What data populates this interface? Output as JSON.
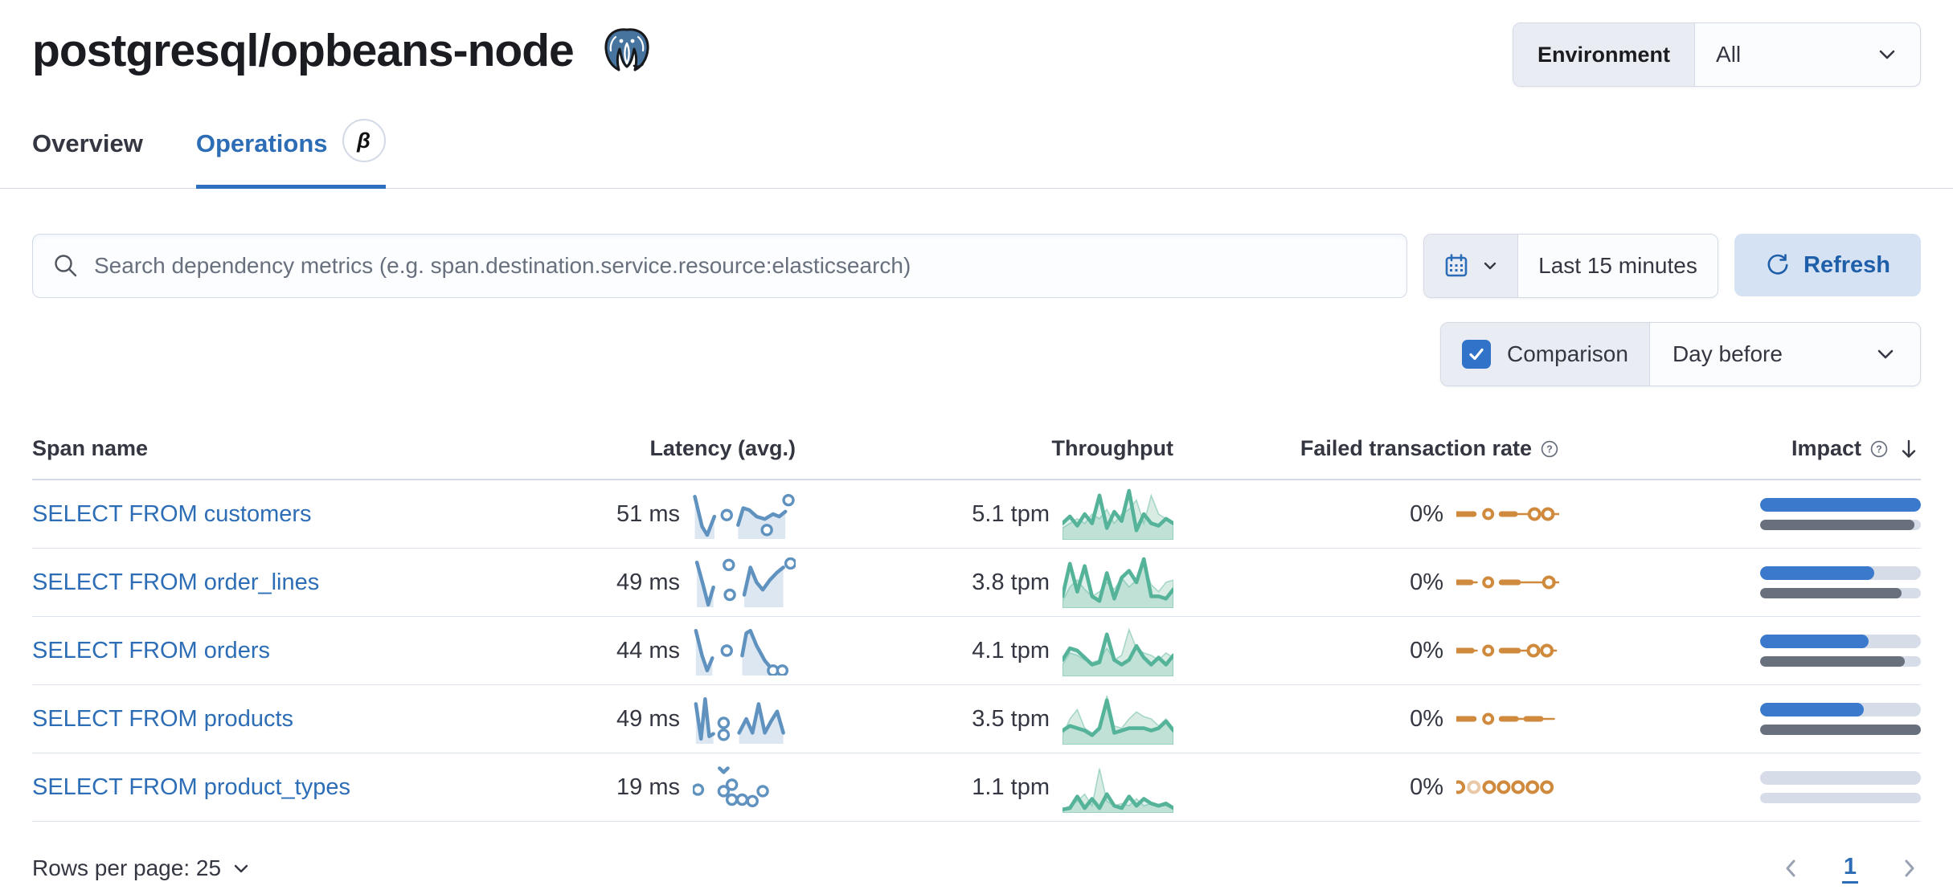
{
  "header": {
    "title": "postgresql/opbeans-node",
    "environment_label": "Environment",
    "environment_value": "All"
  },
  "tabs": [
    {
      "label": "Overview",
      "active": false
    },
    {
      "label": "Operations",
      "active": true,
      "beta": "β"
    }
  ],
  "toolbar": {
    "search_placeholder": "Search dependency metrics (e.g. span.destination.service.resource:elasticsearch)",
    "time_range": "Last 15 minutes",
    "refresh_label": "Refresh",
    "comparison_label": "Comparison",
    "comparison_checked": true,
    "comparison_value": "Day before"
  },
  "colors": {
    "accent_blue": "#2c6db6",
    "latency_spark": "#6092c0",
    "latency_fill": "#dde7f2",
    "throughput_spark": "#54b399",
    "throughput_prev_fill": "#d8ece3",
    "failed_spark": "#d08a3e",
    "impact_current": "#3b79cd",
    "impact_previous": "#69707d",
    "impact_track": "#d6dde8"
  },
  "table": {
    "columns": [
      "Span name",
      "Latency (avg.)",
      "Throughput",
      "Failed transaction rate",
      "Impact"
    ],
    "rows": [
      {
        "span_name": "SELECT FROM customers",
        "latency": "51 ms",
        "throughput": "5.1 tpm",
        "failed_rate": "0%",
        "impact_current": 1.0,
        "impact_previous": 0.96,
        "latency_spark": {
          "segs": [
            {
              "pts": [
                [
                  0.02,
                  0.15
                ],
                [
                  0.09,
                  0.75
                ],
                [
                  0.14,
                  0.92
                ],
                [
                  0.21,
                  0.55
                ]
              ],
              "area": true
            },
            {
              "pts": [
                [
                  0.44,
                  0.72
                ],
                [
                  0.49,
                  0.38
                ],
                [
                  0.55,
                  0.42
                ],
                [
                  0.62,
                  0.55
                ],
                [
                  0.7,
                  0.6
                ],
                [
                  0.78,
                  0.5
                ],
                [
                  0.84,
                  0.55
                ],
                [
                  0.9,
                  0.45
                ]
              ],
              "area": true
            }
          ],
          "dots": [
            [
              0.33,
              0.52
            ],
            [
              0.72,
              0.82
            ],
            [
              0.93,
              0.22
            ]
          ]
        },
        "throughput_curr": [
          0.3,
          0.45,
          0.25,
          0.5,
          0.3,
          0.9,
          0.2,
          0.55,
          0.35,
          1.0,
          0.15,
          0.5,
          0.3,
          0.25,
          0.4,
          0.3
        ],
        "throughput_prev": [
          0.2,
          0.3,
          0.4,
          0.3,
          0.5,
          0.4,
          0.6,
          0.3,
          0.5,
          0.6,
          0.8,
          0.3,
          0.9,
          0.5,
          0.4,
          0.3
        ],
        "failed_spark": [
          {
            "t": "dash",
            "x1": 0.0,
            "x2": 0.17
          },
          {
            "t": "dot",
            "x": 0.31
          },
          {
            "t": "dash",
            "x1": 0.44,
            "x2": 0.57
          },
          {
            "t": "line",
            "x1": 0.57,
            "x2": 0.71
          },
          {
            "t": "odot",
            "x": 0.76
          },
          {
            "t": "odot",
            "x": 0.89
          },
          {
            "t": "line",
            "x1": 0.93,
            "x2": 1.0
          }
        ]
      },
      {
        "span_name": "SELECT FROM order_lines",
        "latency": "49 ms",
        "throughput": "3.8 tpm",
        "failed_rate": "0%",
        "impact_current": 0.71,
        "impact_previous": 0.88,
        "latency_spark": {
          "segs": [
            {
              "pts": [
                [
                  0.04,
                  0.1
                ],
                [
                  0.1,
                  0.55
                ],
                [
                  0.15,
                  0.95
                ],
                [
                  0.2,
                  0.6
                ]
              ],
              "area": true
            },
            {
              "pts": [
                [
                  0.5,
                  0.75
                ],
                [
                  0.56,
                  0.2
                ],
                [
                  0.62,
                  0.5
                ],
                [
                  0.68,
                  0.65
                ],
                [
                  0.75,
                  0.45
                ],
                [
                  0.82,
                  0.3
                ],
                [
                  0.88,
                  0.2
                ]
              ],
              "area": true
            }
          ],
          "dots": [
            [
              0.35,
              0.15
            ],
            [
              0.36,
              0.75
            ],
            [
              0.95,
              0.12
            ]
          ]
        },
        "throughput_curr": [
          0.2,
          0.9,
          0.3,
          0.85,
          0.2,
          0.1,
          0.7,
          0.15,
          0.6,
          0.75,
          0.5,
          1.0,
          0.2,
          0.2,
          0.15,
          0.35
        ],
        "throughput_prev": [
          0.1,
          0.4,
          0.55,
          0.35,
          0.2,
          0.3,
          0.5,
          0.35,
          0.6,
          0.4,
          0.55,
          0.9,
          0.45,
          0.3,
          0.5,
          0.55
        ],
        "failed_spark": [
          {
            "t": "dash",
            "x1": 0.0,
            "x2": 0.14
          },
          {
            "t": "line",
            "x1": 0.14,
            "x2": 0.2
          },
          {
            "t": "dot",
            "x": 0.31
          },
          {
            "t": "dash",
            "x1": 0.44,
            "x2": 0.6
          },
          {
            "t": "line",
            "x1": 0.6,
            "x2": 0.86
          },
          {
            "t": "odot",
            "x": 0.9
          },
          {
            "t": "line",
            "x1": 0.94,
            "x2": 1.0
          }
        ]
      },
      {
        "span_name": "SELECT FROM orders",
        "latency": "44 ms",
        "throughput": "4.1 tpm",
        "failed_rate": "0%",
        "impact_current": 0.675,
        "impact_previous": 0.9,
        "latency_spark": {
          "segs": [
            {
              "pts": [
                [
                  0.03,
                  0.1
                ],
                [
                  0.09,
                  0.6
                ],
                [
                  0.14,
                  0.9
                ],
                [
                  0.19,
                  0.65
                ]
              ],
              "area": true
            },
            {
              "pts": [
                [
                  0.48,
                  0.6
                ],
                [
                  0.52,
                  0.15
                ],
                [
                  0.56,
                  0.1
                ],
                [
                  0.62,
                  0.4
                ],
                [
                  0.7,
                  0.7
                ],
                [
                  0.78,
                  0.9
                ],
                [
                  0.9,
                  0.95
                ]
              ],
              "area": true
            }
          ],
          "dots": [
            [
              0.33,
              0.5
            ],
            [
              0.78,
              0.9
            ],
            [
              0.87,
              0.9
            ]
          ]
        },
        "throughput_curr": [
          0.3,
          0.55,
          0.5,
          0.35,
          0.2,
          0.25,
          0.85,
          0.3,
          0.2,
          0.3,
          0.6,
          0.35,
          0.2,
          0.35,
          0.2,
          0.4
        ],
        "throughput_prev": [
          0.2,
          0.45,
          0.4,
          0.3,
          0.25,
          0.3,
          0.55,
          0.3,
          0.4,
          0.95,
          0.55,
          0.45,
          0.4,
          0.3,
          0.45,
          0.35
        ],
        "failed_spark": [
          {
            "t": "dash",
            "x1": 0.0,
            "x2": 0.15
          },
          {
            "t": "line",
            "x1": 0.15,
            "x2": 0.2
          },
          {
            "t": "dot",
            "x": 0.31
          },
          {
            "t": "dash",
            "x1": 0.44,
            "x2": 0.6
          },
          {
            "t": "line",
            "x1": 0.6,
            "x2": 0.7
          },
          {
            "t": "odot",
            "x": 0.75
          },
          {
            "t": "line",
            "x1": 0.79,
            "x2": 0.83
          },
          {
            "t": "odot",
            "x": 0.88
          },
          {
            "t": "line",
            "x1": 0.92,
            "x2": 0.97
          }
        ]
      },
      {
        "span_name": "SELECT FROM products",
        "latency": "49 ms",
        "throughput": "3.5 tpm",
        "failed_rate": "0%",
        "impact_current": 0.645,
        "impact_previous": 1.0,
        "latency_spark": {
          "segs": [
            {
              "pts": [
                [
                  0.03,
                  0.2
                ],
                [
                  0.08,
                  0.9
                ],
                [
                  0.12,
                  0.1
                ],
                [
                  0.16,
                  0.85
                ],
                [
                  0.2,
                  0.8
                ]
              ],
              "area": true
            },
            {
              "pts": [
                [
                  0.45,
                  0.78
                ],
                [
                  0.52,
                  0.5
                ],
                [
                  0.58,
                  0.78
                ],
                [
                  0.64,
                  0.2
                ],
                [
                  0.7,
                  0.78
                ],
                [
                  0.76,
                  0.55
                ],
                [
                  0.82,
                  0.35
                ],
                [
                  0.88,
                  0.78
                ]
              ],
              "area": true
            }
          ],
          "dots": [
            [
              0.3,
              0.58
            ],
            [
              0.3,
              0.82
            ]
          ]
        },
        "throughput_curr": [
          0.25,
          0.35,
          0.3,
          0.25,
          0.15,
          0.3,
          0.9,
          0.2,
          0.25,
          0.3,
          0.3,
          0.3,
          0.25,
          0.3,
          0.45,
          0.25
        ],
        "throughput_prev": [
          0.15,
          0.5,
          0.7,
          0.3,
          0.2,
          0.25,
          1.0,
          0.35,
          0.3,
          0.5,
          0.65,
          0.55,
          0.5,
          0.35,
          0.5,
          0.3
        ],
        "failed_spark": [
          {
            "t": "dash",
            "x1": 0.0,
            "x2": 0.17
          },
          {
            "t": "dot",
            "x": 0.31
          },
          {
            "t": "dash",
            "x1": 0.44,
            "x2": 0.58
          },
          {
            "t": "line",
            "x1": 0.58,
            "x2": 0.68
          },
          {
            "t": "dash",
            "x1": 0.68,
            "x2": 0.82
          },
          {
            "t": "line",
            "x1": 0.82,
            "x2": 0.95
          }
        ]
      },
      {
        "span_name": "SELECT FROM product_types",
        "latency": "19 ms",
        "throughput": "1.1 tpm",
        "failed_rate": "0%",
        "impact_current": 0.0,
        "impact_previous": 0.0,
        "latency_spark": {
          "segs": [
            {
              "pts": [
                [
                  0.26,
                  0.12
                ],
                [
                  0.3,
                  0.2
                ],
                [
                  0.34,
                  0.12
                ]
              ],
              "area": false
            }
          ],
          "dots": [
            [
              0.05,
              0.55
            ],
            [
              0.3,
              0.58
            ],
            [
              0.38,
              0.45
            ],
            [
              0.38,
              0.75
            ],
            [
              0.48,
              0.75
            ],
            [
              0.58,
              0.78
            ],
            [
              0.68,
              0.58
            ]
          ]
        },
        "throughput_curr": [
          0.02,
          0.05,
          0.3,
          0.05,
          0.25,
          0.05,
          0.35,
          0.1,
          0.05,
          0.3,
          0.1,
          0.25,
          0.15,
          0.1,
          0.15,
          0.05
        ],
        "throughput_prev": [
          0.02,
          0.1,
          0.2,
          0.35,
          0.1,
          0.9,
          0.2,
          0.1,
          0.15,
          0.1,
          0.25,
          0.1,
          0.15,
          0.1,
          0.1,
          0.03
        ],
        "failed_spark": [
          {
            "t": "odot",
            "x": 0.02
          },
          {
            "t": "odot",
            "x": 0.17,
            "faint": true
          },
          {
            "t": "odot",
            "x": 0.32
          },
          {
            "t": "odot",
            "x": 0.46
          },
          {
            "t": "odot",
            "x": 0.6
          },
          {
            "t": "odot",
            "x": 0.74
          },
          {
            "t": "odot",
            "x": 0.88
          }
        ]
      }
    ]
  },
  "pagination": {
    "rows_per_page_label": "Rows per page: 25",
    "page": "1"
  }
}
